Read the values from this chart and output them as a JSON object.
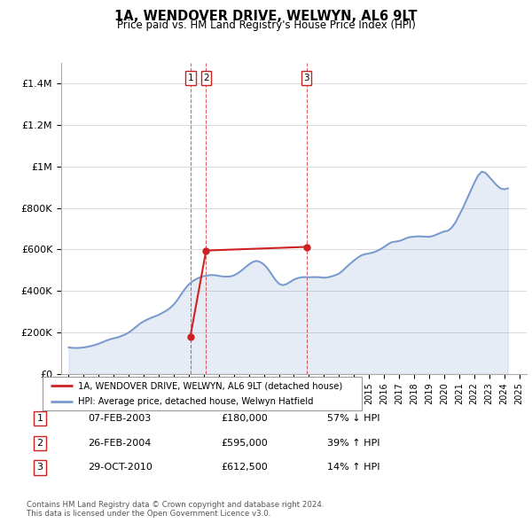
{
  "title": "1A, WENDOVER DRIVE, WELWYN, AL6 9LT",
  "subtitle": "Price paid vs. HM Land Registry's House Price Index (HPI)",
  "ylim": [
    0,
    1500000
  ],
  "yticks": [
    0,
    200000,
    400000,
    600000,
    800000,
    1000000,
    1200000,
    1400000
  ],
  "hpi_color": "#7799cc",
  "price_color": "#cc2222",
  "legend_hpi_label": "HPI: Average price, detached house, Welwyn Hatfield",
  "legend_price_label": "1A, WENDOVER DRIVE, WELWYN, AL6 9LT (detached house)",
  "transactions": [
    {
      "id": 1,
      "date": "07-FEB-2003",
      "price": 180000,
      "hpi_diff": "57% ↓ HPI",
      "x_year": 2003.1
    },
    {
      "id": 2,
      "date": "26-FEB-2004",
      "price": 595000,
      "hpi_diff": "39% ↑ HPI",
      "x_year": 2004.15
    },
    {
      "id": 3,
      "date": "29-OCT-2010",
      "price": 612500,
      "hpi_diff": "14% ↑ HPI",
      "x_year": 2010.83
    }
  ],
  "footer_line1": "Contains HM Land Registry data © Crown copyright and database right 2024.",
  "footer_line2": "This data is licensed under the Open Government Licence v3.0.",
  "hpi_data_x": [
    1995.0,
    1995.25,
    1995.5,
    1995.75,
    1996.0,
    1996.25,
    1996.5,
    1996.75,
    1997.0,
    1997.25,
    1997.5,
    1997.75,
    1998.0,
    1998.25,
    1998.5,
    1998.75,
    1999.0,
    1999.25,
    1999.5,
    1999.75,
    2000.0,
    2000.25,
    2000.5,
    2000.75,
    2001.0,
    2001.25,
    2001.5,
    2001.75,
    2002.0,
    2002.25,
    2002.5,
    2002.75,
    2003.0,
    2003.25,
    2003.5,
    2003.75,
    2004.0,
    2004.25,
    2004.5,
    2004.75,
    2005.0,
    2005.25,
    2005.5,
    2005.75,
    2006.0,
    2006.25,
    2006.5,
    2006.75,
    2007.0,
    2007.25,
    2007.5,
    2007.75,
    2008.0,
    2008.25,
    2008.5,
    2008.75,
    2009.0,
    2009.25,
    2009.5,
    2009.75,
    2010.0,
    2010.25,
    2010.5,
    2010.75,
    2011.0,
    2011.25,
    2011.5,
    2011.75,
    2012.0,
    2012.25,
    2012.5,
    2012.75,
    2013.0,
    2013.25,
    2013.5,
    2013.75,
    2014.0,
    2014.25,
    2014.5,
    2014.75,
    2015.0,
    2015.25,
    2015.5,
    2015.75,
    2016.0,
    2016.25,
    2016.5,
    2016.75,
    2017.0,
    2017.25,
    2017.5,
    2017.75,
    2018.0,
    2018.25,
    2018.5,
    2018.75,
    2019.0,
    2019.25,
    2019.5,
    2019.75,
    2020.0,
    2020.25,
    2020.5,
    2020.75,
    2021.0,
    2021.25,
    2021.5,
    2021.75,
    2022.0,
    2022.25,
    2022.5,
    2022.75,
    2023.0,
    2023.25,
    2023.5,
    2023.75,
    2024.0,
    2024.25
  ],
  "hpi_data_y": [
    128000,
    126000,
    125000,
    126000,
    128000,
    131000,
    135000,
    140000,
    146000,
    153000,
    161000,
    167000,
    172000,
    176000,
    183000,
    190000,
    200000,
    213000,
    228000,
    243000,
    254000,
    263000,
    271000,
    278000,
    285000,
    295000,
    305000,
    318000,
    335000,
    358000,
    385000,
    411000,
    432000,
    447000,
    458000,
    466000,
    472000,
    475000,
    477000,
    476000,
    473000,
    470000,
    469000,
    470000,
    475000,
    485000,
    498000,
    513000,
    528000,
    540000,
    545000,
    540000,
    528000,
    508000,
    482000,
    455000,
    435000,
    428000,
    433000,
    444000,
    455000,
    462000,
    466000,
    467000,
    466000,
    467000,
    467000,
    466000,
    464000,
    466000,
    470000,
    476000,
    484000,
    498000,
    516000,
    532000,
    547000,
    561000,
    572000,
    578000,
    581000,
    585000,
    592000,
    601000,
    612000,
    625000,
    635000,
    638000,
    641000,
    647000,
    655000,
    660000,
    662000,
    663000,
    663000,
    662000,
    661000,
    665000,
    672000,
    680000,
    687000,
    690000,
    705000,
    730000,
    765000,
    800000,
    840000,
    880000,
    920000,
    955000,
    975000,
    970000,
    950000,
    930000,
    910000,
    895000,
    890000,
    895000
  ],
  "price_line_x": [
    2003.1,
    2004.15,
    2010.83
  ],
  "price_line_y": [
    180000,
    595000,
    612500
  ],
  "xmin": 1994.5,
  "xmax": 2025.5
}
